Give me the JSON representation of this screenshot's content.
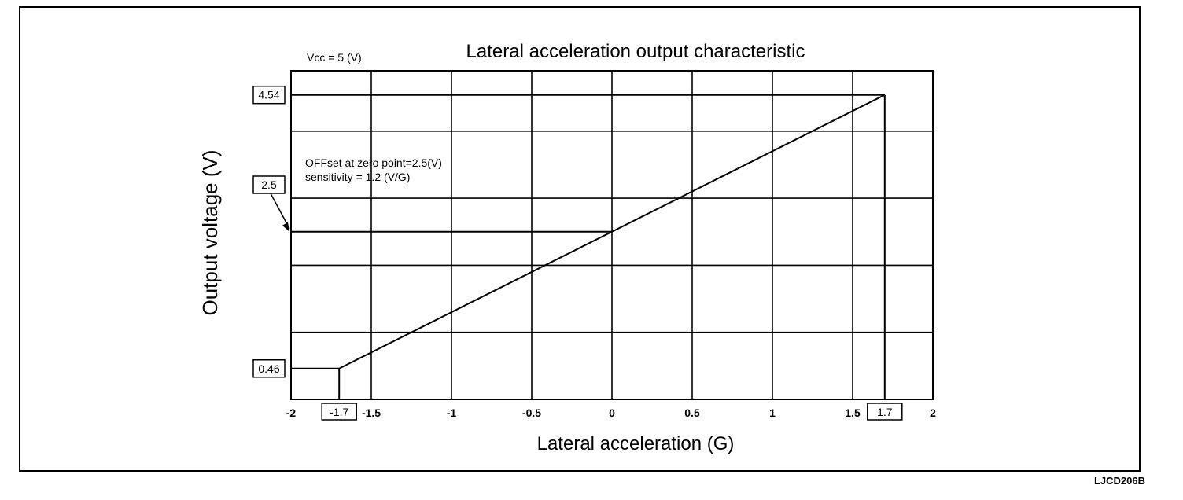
{
  "chart_data": {
    "type": "line",
    "title": "Lateral acceleration output characteristic",
    "xlabel": "Lateral acceleration (G)",
    "ylabel": "Output voltage (V)",
    "xlim": [
      -2,
      2
    ],
    "ylim": [
      0,
      4.9
    ],
    "grid": true,
    "x_ticks": [
      {
        "value": -2,
        "label": "-2"
      },
      {
        "value": -1.5,
        "label": "-1.5"
      },
      {
        "value": -1,
        "label": "-1"
      },
      {
        "value": -0.5,
        "label": "-0.5"
      },
      {
        "value": 0,
        "label": "0"
      },
      {
        "value": 0.5,
        "label": "0.5"
      },
      {
        "value": 1,
        "label": "1"
      },
      {
        "value": 1.5,
        "label": "1.5"
      },
      {
        "value": 2,
        "label": "2"
      }
    ],
    "x_boxed_ticks": [
      {
        "value": -1.7,
        "label": "-1.7"
      },
      {
        "value": 1.7,
        "label": "1.7"
      }
    ],
    "y_boxed_ticks": [
      {
        "value": 4.54,
        "label": "4.54"
      },
      {
        "value": 2.5,
        "label": "2.5"
      },
      {
        "value": 0.46,
        "label": "0.46"
      }
    ],
    "series": [
      {
        "x": [
          -1.7,
          1.7
        ],
        "y": [
          0.46,
          4.54
        ]
      }
    ],
    "annotations": {
      "supply": "Vcc = 5 (V)",
      "offset": "OFFset at zero point=2.5(V)",
      "sensitivity": "sensitivity = 1.2 (V/G)"
    }
  },
  "figure_code": "LJCD206B"
}
